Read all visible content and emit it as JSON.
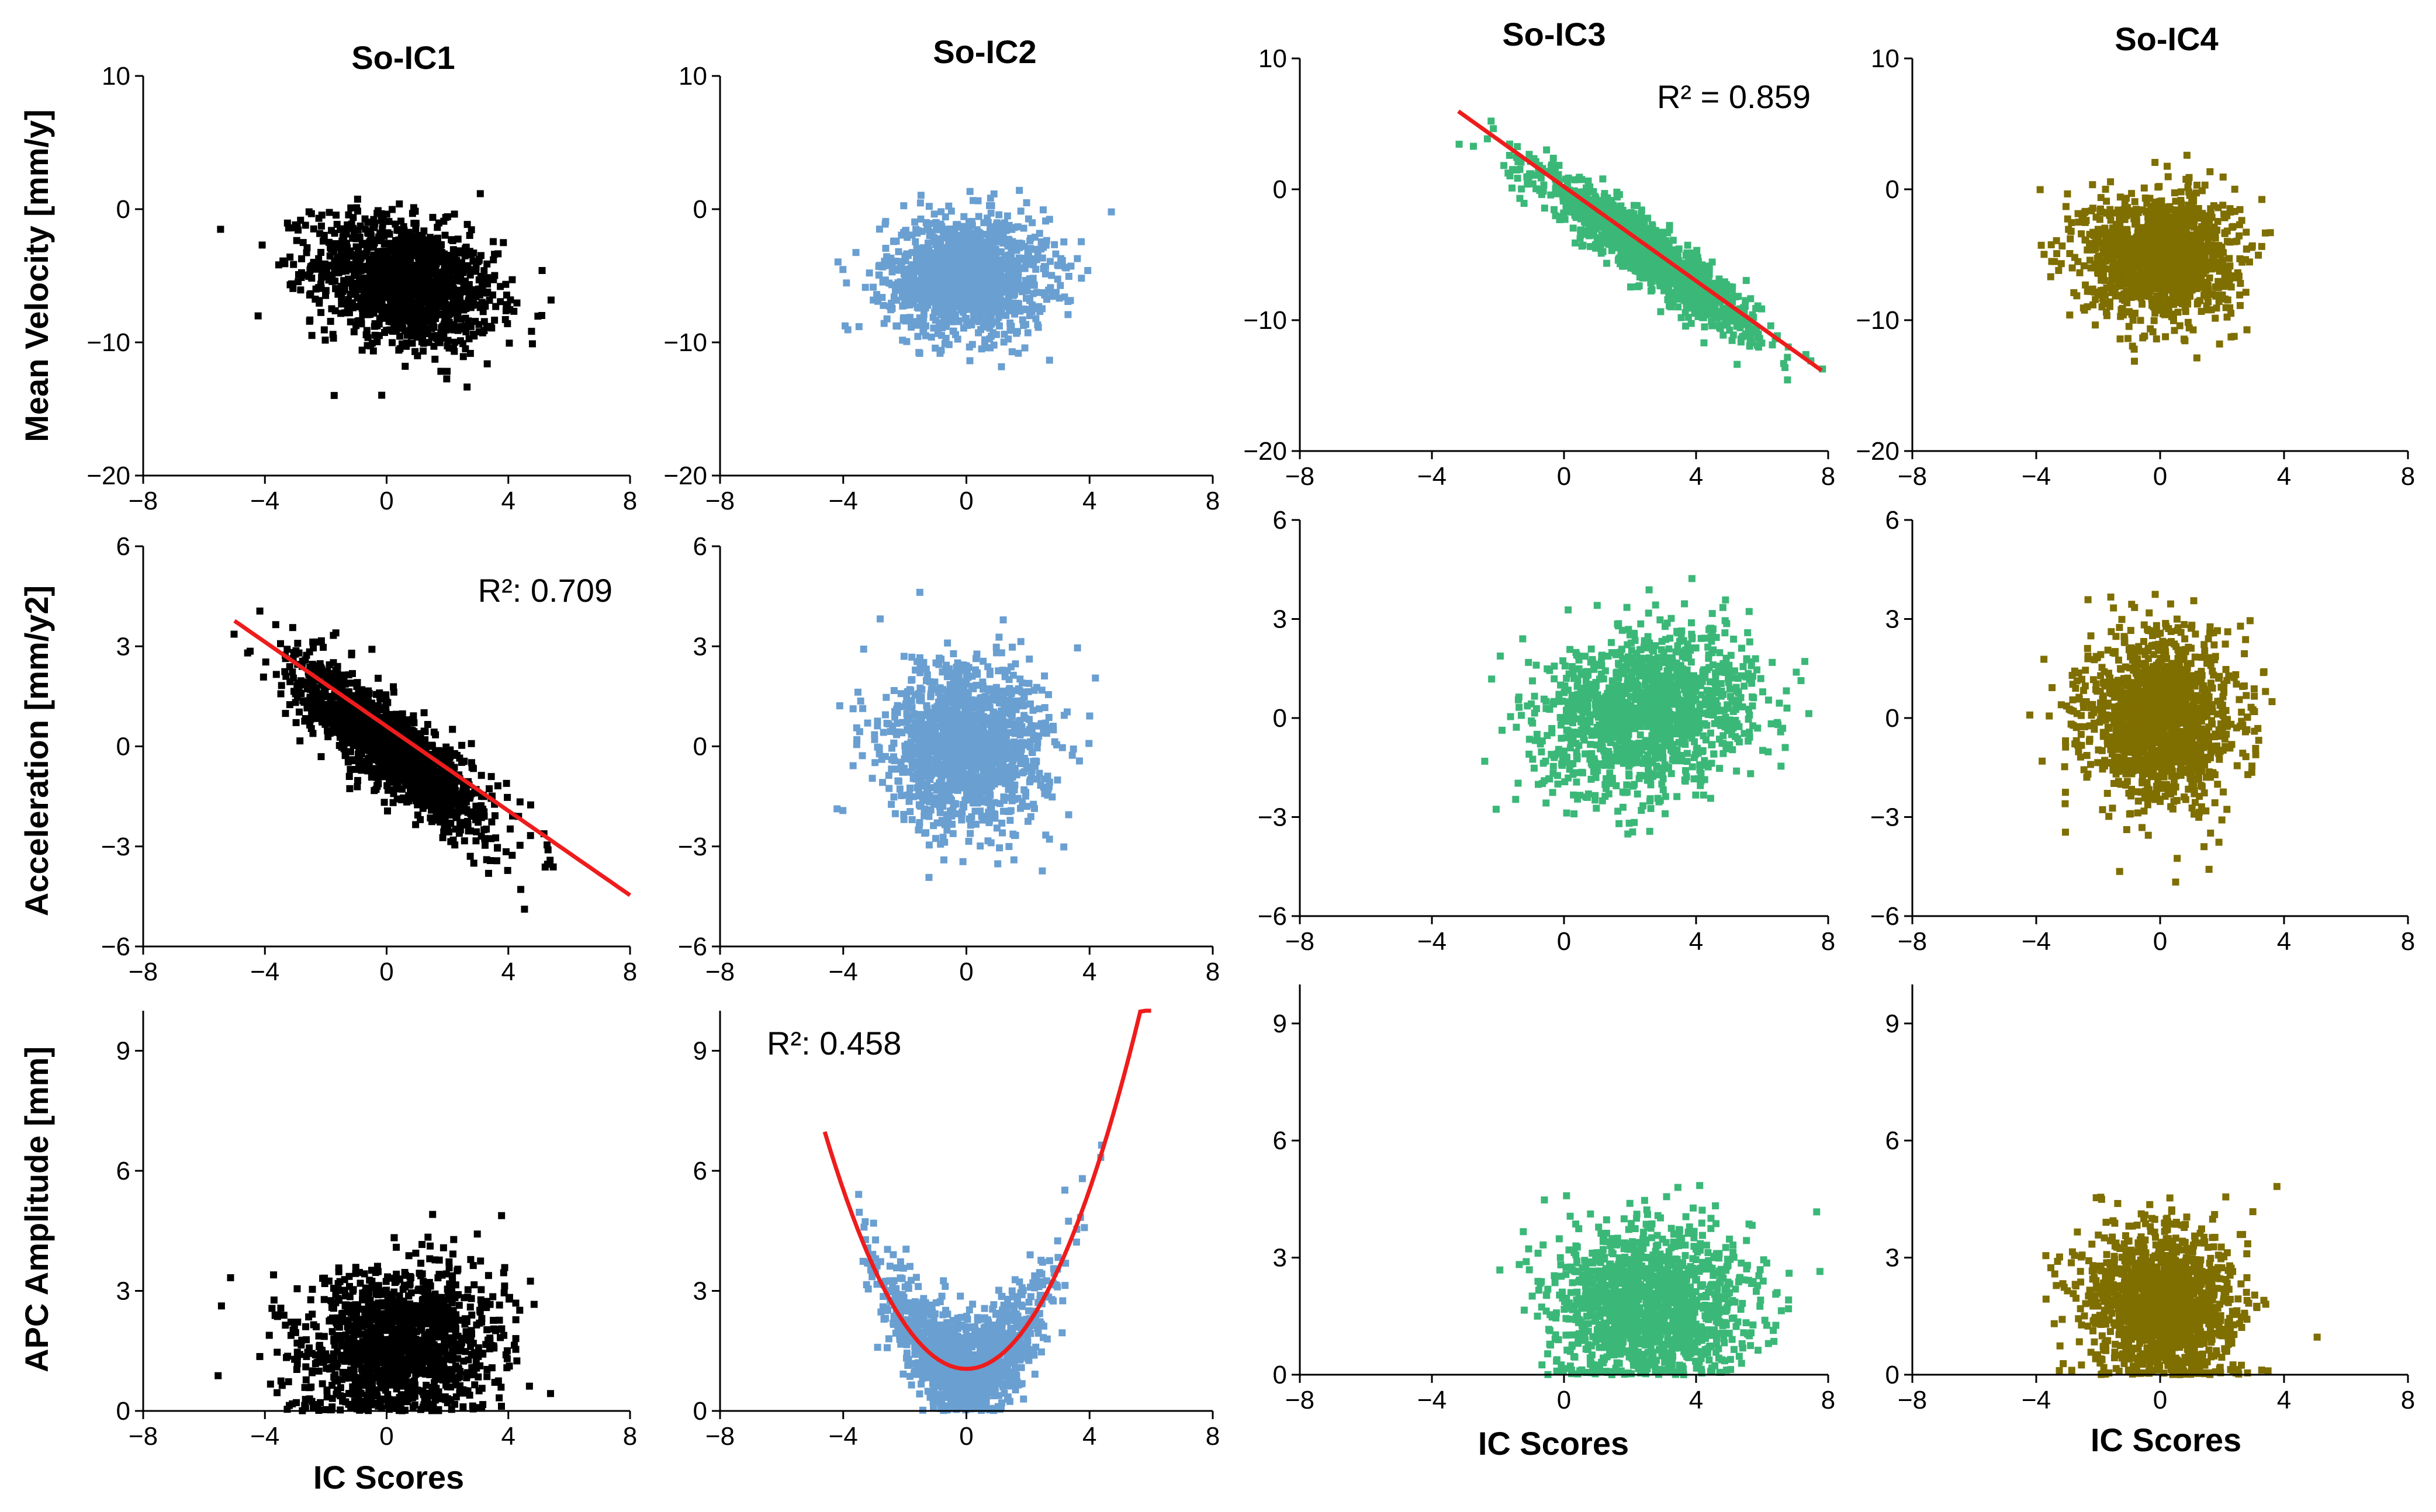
{
  "figure": {
    "columns": [
      "So-IC1",
      "So-IC2",
      "So-IC3",
      "So-IC4"
    ],
    "row_labels": [
      "Mean Velocity [mm/y]",
      "Acceleration [mm/y2]",
      "APC Amplitude [mm]"
    ],
    "x_label": "IC Scores",
    "colors": {
      "So-IC1": "#000000",
      "So-IC2": "#6a9fd1",
      "So-IC3": "#3bb878",
      "So-IC4": "#7f6e00",
      "fit": "#ee1c1c"
    }
  },
  "chart_data": [
    {
      "type": "scatter",
      "id": "ic1-velocity",
      "column": "So-IC1",
      "title": "So-IC1",
      "ylabel": "Mean Velocity [mm/y]",
      "xlabel": "",
      "xlim": [
        -8,
        8
      ],
      "ylim": [
        -20,
        10
      ],
      "xticks": [
        "−8",
        "−4",
        "0",
        "4",
        "8"
      ],
      "xtick_values": [
        -8,
        -4,
        0,
        4,
        8
      ],
      "yticks": [
        "10",
        "0",
        "−10",
        "−20"
      ],
      "ytick_values": [
        10,
        0,
        -10,
        -20
      ],
      "point_cloud": {
        "x_mean": 0.6,
        "x_sd": 1.5,
        "y_mean": -5.5,
        "y_sd": 2.4,
        "correlation": -0.3
      },
      "annotation": "",
      "fit": null
    },
    {
      "type": "scatter",
      "id": "ic2-velocity",
      "column": "So-IC2",
      "title": "So-IC2",
      "ylabel": "",
      "xlabel": "",
      "xlim": [
        -8,
        8
      ],
      "ylim": [
        -20,
        10
      ],
      "xticks": [
        "−8",
        "−4",
        "0",
        "4",
        "8"
      ],
      "xtick_values": [
        -8,
        -4,
        0,
        4,
        8
      ],
      "yticks": [
        "10",
        "0",
        "−10",
        "−20"
      ],
      "ytick_values": [
        10,
        0,
        -10,
        -20
      ],
      "point_cloud": {
        "x_mean": 0.0,
        "x_sd": 1.3,
        "y_mean": -5.0,
        "y_sd": 2.2,
        "correlation": 0.0
      },
      "annotation": "",
      "fit": null
    },
    {
      "type": "scatter",
      "id": "ic3-velocity",
      "column": "So-IC3",
      "title": "So-IC3",
      "ylabel": "",
      "xlabel": "",
      "xlim": [
        -8,
        8
      ],
      "ylim": [
        -20,
        10
      ],
      "xticks": [
        "−8",
        "−4",
        "0",
        "4",
        "8"
      ],
      "xtick_values": [
        -8,
        -4,
        0,
        4,
        8
      ],
      "yticks": [
        "10",
        "0",
        "−10",
        "−20"
      ],
      "ytick_values": [
        10,
        0,
        -10,
        -20
      ],
      "point_cloud": {
        "x_mean": 2.6,
        "x_sd": 1.6,
        "y_mean": -5.0,
        "y_sd": 3.0,
        "correlation": -0.93
      },
      "annotation": "R² = 0.859",
      "fit": {
        "kind": "linear",
        "slope": -1.8,
        "intercept": 0.2,
        "x_range": [
          -3.2,
          7.8
        ]
      }
    },
    {
      "type": "scatter",
      "id": "ic4-velocity",
      "column": "So-IC4",
      "title": "So-IC4",
      "ylabel": "",
      "xlabel": "",
      "xlim": [
        -8,
        8
      ],
      "ylim": [
        -20,
        10
      ],
      "xticks": [
        "−8",
        "−4",
        "0",
        "4",
        "8"
      ],
      "xtick_values": [
        -8,
        -4,
        0,
        4,
        8
      ],
      "yticks": [
        "10",
        "0",
        "−10",
        "−20"
      ],
      "ytick_values": [
        10,
        0,
        -10,
        -20
      ],
      "point_cloud": {
        "x_mean": 0.0,
        "x_sd": 1.2,
        "y_mean": -5.0,
        "y_sd": 2.3,
        "correlation": 0.0
      },
      "annotation": "",
      "fit": null
    },
    {
      "type": "scatter",
      "id": "ic1-acceleration",
      "column": "So-IC1",
      "title": "",
      "ylabel": "Acceleration [mm/y2]",
      "xlabel": "",
      "xlim": [
        -8,
        8
      ],
      "ylim": [
        -6,
        6
      ],
      "xticks": [
        "−8",
        "−4",
        "0",
        "4",
        "8"
      ],
      "xtick_values": [
        -8,
        -4,
        0,
        4,
        8
      ],
      "yticks": [
        "6",
        "3",
        "0",
        "−3",
        "−6"
      ],
      "ytick_values": [
        6,
        3,
        0,
        -3,
        -6
      ],
      "point_cloud": {
        "x_mean": 0.2,
        "x_sd": 1.6,
        "y_mean": -0.1,
        "y_sd": 1.25,
        "correlation": -0.84
      },
      "annotation": "R²: 0.709",
      "fit": {
        "kind": "linear",
        "slope": -0.633,
        "intercept": 0.6,
        "x_range": [
          -5,
          8
        ]
      }
    },
    {
      "type": "scatter",
      "id": "ic2-acceleration",
      "column": "So-IC2",
      "title": "",
      "ylabel": "",
      "xlabel": "",
      "xlim": [
        -8,
        8
      ],
      "ylim": [
        -6,
        6
      ],
      "xticks": [
        "−8",
        "−4",
        "0",
        "4",
        "8"
      ],
      "xtick_values": [
        -8,
        -4,
        0,
        4,
        8
      ],
      "yticks": [
        "6",
        "3",
        "0",
        "−3",
        "−6"
      ],
      "ytick_values": [
        6,
        3,
        0,
        -3,
        -6
      ],
      "point_cloud": {
        "x_mean": 0.0,
        "x_sd": 1.3,
        "y_mean": 0.0,
        "y_sd": 1.2,
        "correlation": 0.0
      },
      "annotation": "",
      "fit": null
    },
    {
      "type": "scatter",
      "id": "ic3-acceleration",
      "column": "So-IC3",
      "title": "",
      "ylabel": "",
      "xlabel": "",
      "xlim": [
        -8,
        8
      ],
      "ylim": [
        -6,
        6
      ],
      "xticks": [
        "−8",
        "−4",
        "0",
        "4",
        "8"
      ],
      "xtick_values": [
        -8,
        -4,
        0,
        4,
        8
      ],
      "yticks": [
        "6",
        "3",
        "0",
        "−3",
        "−6"
      ],
      "ytick_values": [
        6,
        3,
        0,
        -3,
        -6
      ],
      "point_cloud": {
        "x_mean": 2.6,
        "x_sd": 1.6,
        "y_mean": 0.2,
        "y_sd": 1.2,
        "correlation": 0.2
      },
      "annotation": "",
      "fit": null
    },
    {
      "type": "scatter",
      "id": "ic4-acceleration",
      "column": "So-IC4",
      "title": "",
      "ylabel": "",
      "xlabel": "",
      "xlim": [
        -8,
        8
      ],
      "ylim": [
        -6,
        6
      ],
      "xticks": [
        "−8",
        "−4",
        "0",
        "4",
        "8"
      ],
      "xtick_values": [
        -8,
        -4,
        0,
        4,
        8
      ],
      "yticks": [
        "6",
        "3",
        "0",
        "−3",
        "−6"
      ],
      "ytick_values": [
        6,
        3,
        0,
        -3,
        -6
      ],
      "point_cloud": {
        "x_mean": 0.0,
        "x_sd": 1.2,
        "y_mean": 0.0,
        "y_sd": 1.25,
        "correlation": 0.0
      },
      "annotation": "",
      "fit": null
    },
    {
      "type": "scatter",
      "id": "ic1-apc",
      "column": "So-IC1",
      "title": "",
      "ylabel": "APC Amplitude [mm]",
      "xlabel": "IC Scores",
      "xlim": [
        -8,
        8
      ],
      "ylim": [
        0,
        10
      ],
      "xticks": [
        "−8",
        "−4",
        "0",
        "4",
        "8"
      ],
      "xtick_values": [
        -8,
        -4,
        0,
        4,
        8
      ],
      "yticks": [
        "9",
        "6",
        "3",
        "0"
      ],
      "ytick_values": [
        9,
        6,
        3,
        0
      ],
      "point_cloud": {
        "x_mean": 0.4,
        "x_sd": 1.6,
        "y_mean": 1.6,
        "y_sd": 1.0,
        "correlation": 0.1,
        "y_floor": 0
      },
      "annotation": "",
      "fit": null
    },
    {
      "type": "scatter",
      "id": "ic2-apc",
      "column": "So-IC2",
      "title": "",
      "ylabel": "",
      "xlabel": "",
      "xlim": [
        -8,
        8
      ],
      "ylim": [
        0,
        10
      ],
      "xticks": [
        "−8",
        "−4",
        "0",
        "4",
        "8"
      ],
      "xtick_values": [
        -8,
        -4,
        0,
        4,
        8
      ],
      "yticks": [
        "9",
        "6",
        "3",
        "0"
      ],
      "ytick_values": [
        9,
        6,
        3,
        0
      ],
      "point_cloud": {
        "x_mean": 0.0,
        "x_sd": 1.3,
        "y_mean": 1.6,
        "y_sd": 0.9,
        "correlation": 0.0,
        "y_floor": 0,
        "parabola": [
          1.05,
          0,
          0.28
        ]
      },
      "annotation": "R²: 0.458",
      "fit": {
        "kind": "quadratic",
        "a": 0.28,
        "b": 0.0,
        "c": 1.05,
        "x_range": [
          -4.6,
          6.0
        ]
      }
    },
    {
      "type": "scatter",
      "id": "ic3-apc",
      "column": "So-IC3",
      "title": "",
      "ylabel": "",
      "xlabel": "IC Scores",
      "xlim": [
        -8,
        8
      ],
      "ylim": [
        0,
        10
      ],
      "xticks": [
        "−8",
        "−4",
        "0",
        "4",
        "8"
      ],
      "xtick_values": [
        -8,
        -4,
        0,
        4,
        8
      ],
      "yticks": [
        "9",
        "6",
        "3",
        "0"
      ],
      "ytick_values": [
        9,
        6,
        3,
        0
      ],
      "point_cloud": {
        "x_mean": 2.6,
        "x_sd": 1.5,
        "y_mean": 1.8,
        "y_sd": 1.0,
        "correlation": 0.0,
        "y_floor": 0
      },
      "annotation": "",
      "fit": null
    },
    {
      "type": "scatter",
      "id": "ic4-apc",
      "column": "So-IC4",
      "title": "",
      "ylabel": "",
      "xlabel": "IC Scores",
      "xlim": [
        -8,
        8
      ],
      "ylim": [
        0,
        10
      ],
      "xticks": [
        "−8",
        "−4",
        "0",
        "4",
        "8"
      ],
      "xtick_values": [
        -8,
        -4,
        0,
        4,
        8
      ],
      "yticks": [
        "9",
        "6",
        "3",
        "0"
      ],
      "ytick_values": [
        9,
        6,
        3,
        0
      ],
      "point_cloud": {
        "x_mean": 0.0,
        "x_sd": 1.2,
        "y_mean": 1.8,
        "y_sd": 1.0,
        "correlation": -0.05,
        "y_floor": 0
      },
      "annotation": "",
      "fit": null
    }
  ]
}
